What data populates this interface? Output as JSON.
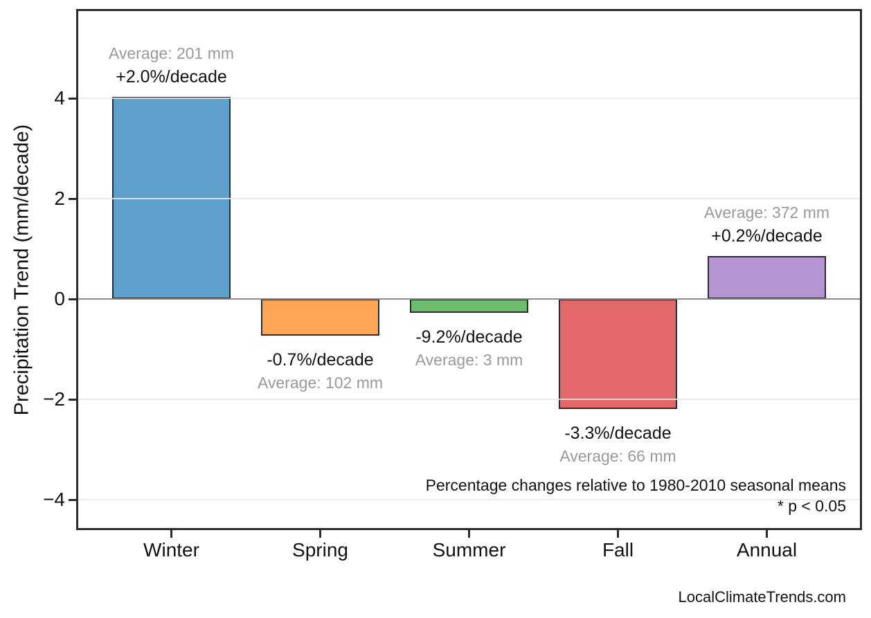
{
  "chart_data": {
    "type": "bar",
    "title": "",
    "xlabel": "",
    "ylabel": "Precipitation Trend (mm/decade)",
    "categories": [
      "Winter",
      "Spring",
      "Summer",
      "Fall",
      "Annual"
    ],
    "values": [
      4.03,
      -0.73,
      -0.27,
      -2.19,
      0.85
    ],
    "units": "mm/decade",
    "yticks": [
      4,
      2,
      0,
      -2,
      -4
    ],
    "ytick_labels": [
      "4",
      "2",
      "0",
      "−2",
      "−4"
    ],
    "ylim": [
      -4.6,
      5.75
    ],
    "grid": true,
    "zero_line": true,
    "legend": "none",
    "bars": [
      {
        "category": "Winter",
        "value": 4.03,
        "color": "#5CA0CB",
        "percent_label": "+2.0%/decade",
        "average_label": "Average: 201 mm",
        "average_mm": 201
      },
      {
        "category": "Spring",
        "value": -0.73,
        "color": "#FFA556",
        "percent_label": "-0.7%/decade",
        "average_label": "Average: 102 mm",
        "average_mm": 102
      },
      {
        "category": "Summer",
        "value": -0.27,
        "color": "#6BBC6B",
        "percent_label": "-9.2%/decade",
        "average_label": "Average: 3 mm",
        "average_mm": 3
      },
      {
        "category": "Fall",
        "value": -2.19,
        "color": "#E26869",
        "percent_label": "-3.3%/decade",
        "average_label": "Average: 66 mm",
        "average_mm": 66
      },
      {
        "category": "Annual",
        "value": 0.85,
        "color": "#B495D1",
        "percent_label": "+0.2%/decade",
        "average_label": "Average: 372 mm",
        "average_mm": 372
      }
    ],
    "notes": [
      "Percentage changes relative to 1980-2010 seasonal means",
      "* p < 0.05"
    ]
  },
  "watermark": "LocalClimateTrends.com",
  "colors": {
    "bar_edge": "#2b2b2b",
    "axis_spine": "#2b2b2b",
    "gridline": "#e7e7e7",
    "zero_line": "#8a8a8a",
    "percent_text": "#111111",
    "average_text": "#999999",
    "background": "#ffffff"
  }
}
